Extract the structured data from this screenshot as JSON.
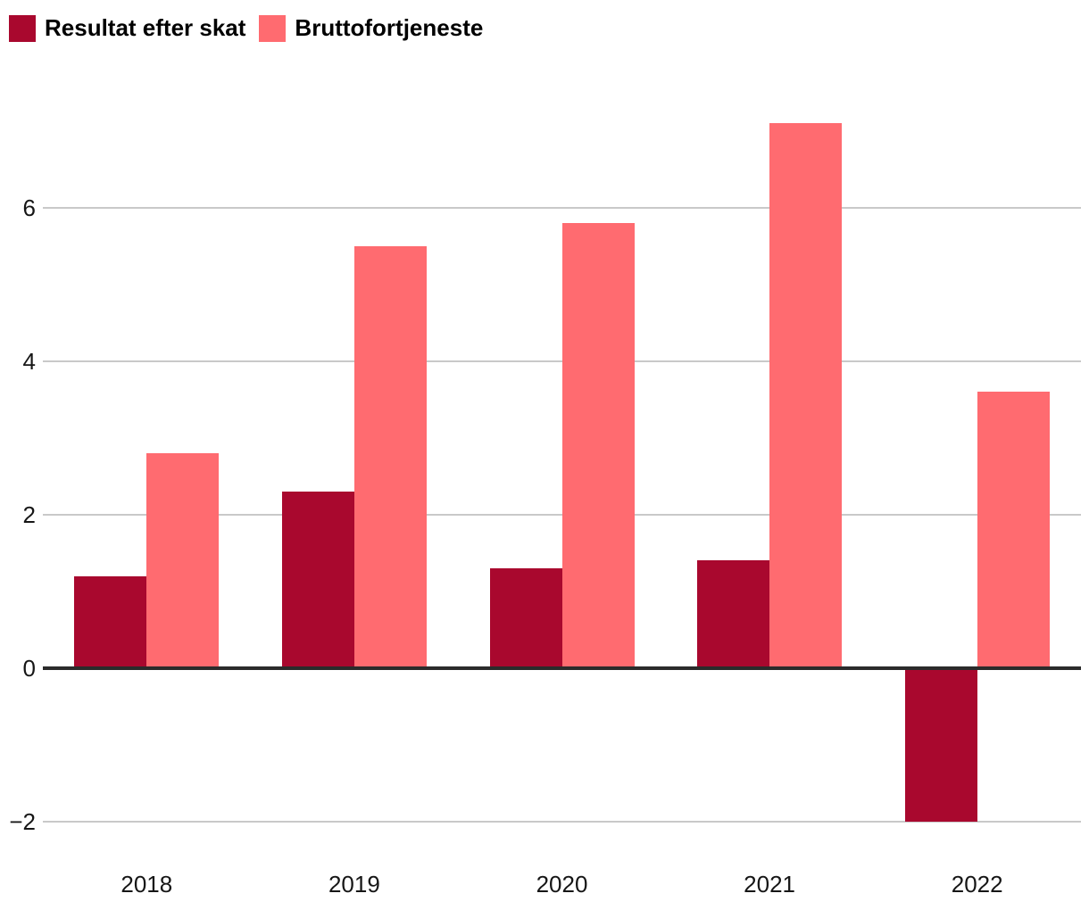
{
  "chart_data": {
    "type": "bar",
    "title": "",
    "xlabel": "",
    "ylabel": "",
    "categories": [
      "2018",
      "2019",
      "2020",
      "2021",
      "2022"
    ],
    "series": [
      {
        "name": "Resultat efter skat",
        "color": "#A9082E",
        "values": [
          1.2,
          2.3,
          1.3,
          1.4,
          -2.0
        ]
      },
      {
        "name": "Bruttofortjeneste",
        "color": "#FF6B70",
        "values": [
          2.8,
          5.5,
          5.8,
          7.1,
          3.6
        ]
      }
    ],
    "yticks": [
      6,
      4,
      2,
      0,
      -2
    ],
    "ytick_labels": [
      "6",
      "4",
      "2",
      "0",
      "−2"
    ],
    "ylim": [
      -2.4,
      8.07
    ],
    "grid": true,
    "legend_position": "top-left",
    "colors": {
      "gridline": "#C9C9C9",
      "zero_line": "#2B2B2B",
      "axis_text": "#161616",
      "legend_text": "#000000",
      "background": "#FFFFFF"
    }
  }
}
